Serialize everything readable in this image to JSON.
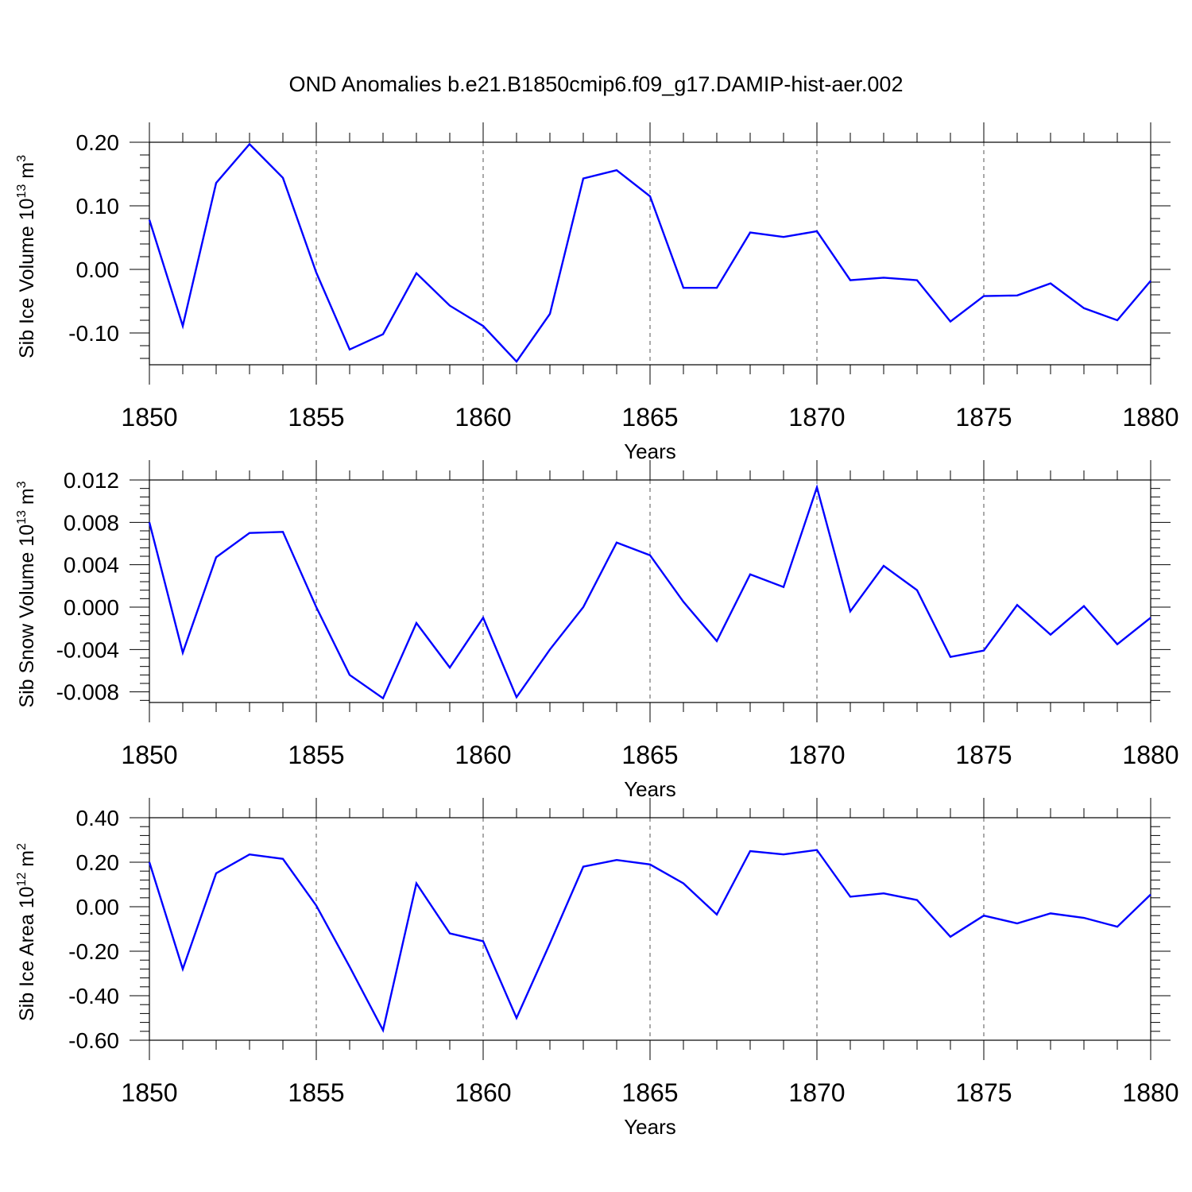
{
  "title": "OND Anomalies b.e21.B1850cmip6.f09_g17.DAMIP-hist-aer.002",
  "chart_data": [
    {
      "type": "line",
      "ylabel_text": "Sib Ice Volume 10",
      "ylabel_exp": "13",
      "ylabel_unit": " m",
      "ylabel_unit_exp": "3",
      "xlabel": "Years",
      "xlim": [
        1850,
        1880
      ],
      "ylim": [
        -0.15,
        0.2
      ],
      "yticks": [
        "0.20",
        "0.10",
        "0.00",
        "-0.10"
      ],
      "ytick_values": [
        0.2,
        0.1,
        0.0,
        -0.1
      ],
      "xticks": [
        "1850",
        "1855",
        "1860",
        "1865",
        "1870",
        "1875",
        "1880"
      ],
      "xtick_values": [
        1850,
        1855,
        1860,
        1865,
        1870,
        1875,
        1880
      ],
      "series_color": "#0000ff",
      "x": [
        1850,
        1851,
        1852,
        1853,
        1854,
        1855,
        1856,
        1857,
        1858,
        1859,
        1860,
        1861,
        1862,
        1863,
        1864,
        1865,
        1866,
        1867,
        1868,
        1869,
        1870,
        1871,
        1872,
        1873,
        1874,
        1875,
        1876,
        1877,
        1878,
        1879,
        1880
      ],
      "values": [
        0.078,
        -0.089,
        0.136,
        0.197,
        0.144,
        -0.005,
        -0.126,
        -0.102,
        -0.006,
        -0.057,
        -0.089,
        -0.145,
        -0.07,
        0.143,
        0.156,
        0.115,
        -0.029,
        -0.029,
        0.058,
        0.051,
        0.06,
        -0.017,
        -0.013,
        -0.017,
        -0.082,
        -0.042,
        -0.041,
        -0.022,
        -0.061,
        -0.08,
        -0.018
      ]
    },
    {
      "type": "line",
      "ylabel_text": "Sib Snow Volume 10",
      "ylabel_exp": "13",
      "ylabel_unit": " m",
      "ylabel_unit_exp": "3",
      "xlabel": "Years",
      "xlim": [
        1850,
        1880
      ],
      "ylim": [
        -0.009,
        0.012
      ],
      "yticks": [
        "0.012",
        "0.008",
        "0.004",
        "0.000",
        "-0.004",
        "-0.008"
      ],
      "ytick_values": [
        0.012,
        0.008,
        0.004,
        0.0,
        -0.004,
        -0.008
      ],
      "xticks": [
        "1850",
        "1855",
        "1860",
        "1865",
        "1870",
        "1875",
        "1880"
      ],
      "xtick_values": [
        1850,
        1855,
        1860,
        1865,
        1870,
        1875,
        1880
      ],
      "series_color": "#0000ff",
      "x": [
        1850,
        1851,
        1852,
        1853,
        1854,
        1855,
        1856,
        1857,
        1858,
        1859,
        1860,
        1861,
        1862,
        1863,
        1864,
        1865,
        1866,
        1867,
        1868,
        1869,
        1870,
        1871,
        1872,
        1873,
        1874,
        1875,
        1876,
        1877,
        1878,
        1879,
        1880
      ],
      "values": [
        0.008,
        -0.0043,
        0.0047,
        0.007,
        0.0071,
        0.0,
        -0.0064,
        -0.0086,
        -0.0015,
        -0.0057,
        -0.001,
        -0.0085,
        -0.004,
        0.0,
        0.0061,
        0.0049,
        0.0005,
        -0.0032,
        0.0031,
        0.0019,
        0.0113,
        -0.0004,
        0.0039,
        0.0016,
        -0.0047,
        -0.0041,
        0.0002,
        -0.0026,
        0.0001,
        -0.0035,
        -0.001
      ]
    },
    {
      "type": "line",
      "ylabel_text": "Sib Ice Area 10",
      "ylabel_exp": "12",
      "ylabel_unit": " m",
      "ylabel_unit_exp": "2",
      "xlabel": "Years",
      "xlim": [
        1850,
        1880
      ],
      "ylim": [
        -0.6,
        0.4
      ],
      "yticks": [
        "0.40",
        "0.20",
        "0.00",
        "-0.20",
        "-0.40",
        "-0.60"
      ],
      "ytick_values": [
        0.4,
        0.2,
        0.0,
        -0.2,
        -0.4,
        -0.6
      ],
      "xticks": [
        "1850",
        "1855",
        "1860",
        "1865",
        "1870",
        "1875",
        "1880"
      ],
      "xtick_values": [
        1850,
        1855,
        1860,
        1865,
        1870,
        1875,
        1880
      ],
      "series_color": "#0000ff",
      "x": [
        1850,
        1851,
        1852,
        1853,
        1854,
        1855,
        1856,
        1857,
        1858,
        1859,
        1860,
        1861,
        1862,
        1863,
        1864,
        1865,
        1866,
        1867,
        1868,
        1869,
        1870,
        1871,
        1872,
        1873,
        1874,
        1875,
        1876,
        1877,
        1878,
        1879,
        1880
      ],
      "values": [
        0.2,
        -0.28,
        0.15,
        0.235,
        0.215,
        0.005,
        -0.27,
        -0.555,
        0.105,
        -0.12,
        -0.155,
        -0.5,
        -0.165,
        0.18,
        0.21,
        0.19,
        0.105,
        -0.035,
        0.25,
        0.235,
        0.255,
        0.045,
        0.06,
        0.03,
        -0.135,
        -0.04,
        -0.075,
        -0.03,
        -0.05,
        -0.09,
        0.055
      ]
    }
  ]
}
